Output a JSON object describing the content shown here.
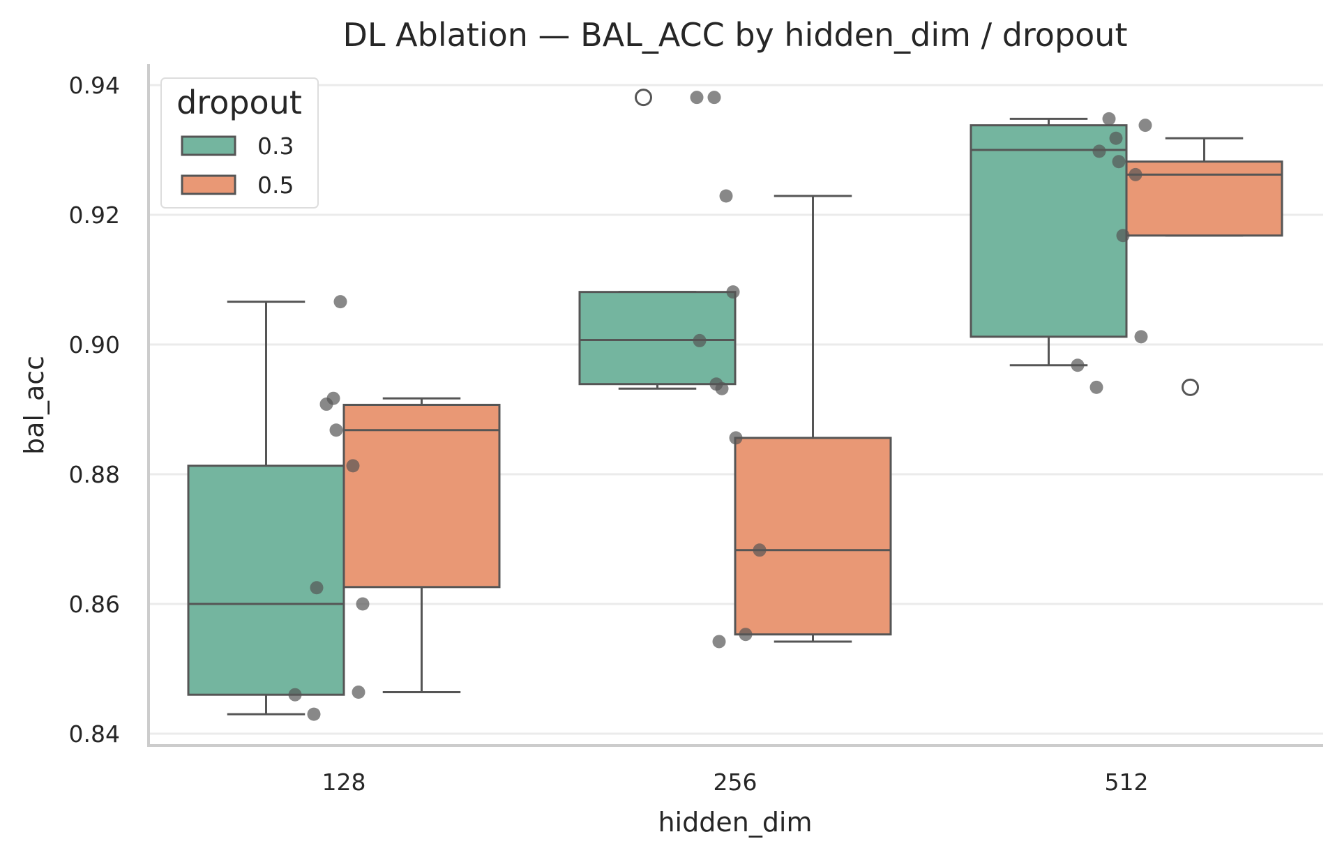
{
  "chart_data": {
    "type": "box",
    "title": "DL Ablation — BAL_ACC by hidden_dim / dropout",
    "xlabel": "hidden_dim",
    "ylabel": "bal_acc",
    "categories": [
      "128",
      "256",
      "512"
    ],
    "ylim": [
      0.838,
      0.944
    ],
    "yticks": [
      0.84,
      0.86,
      0.88,
      0.9,
      0.92,
      0.94
    ],
    "ytick_labels": [
      "0.84",
      "0.86",
      "0.88",
      "0.90",
      "0.92",
      "0.94"
    ],
    "grid": "horizontal",
    "legend": {
      "title": "dropout",
      "placement": "top-left",
      "entries": [
        "0.3",
        "0.5"
      ]
    },
    "colors": {
      "0.3": "#74b59f",
      "0.5": "#e99875",
      "box_edge": "#555555",
      "point": "#555555",
      "grid": "#ebebeb",
      "spine": "#cccccc"
    },
    "series": [
      {
        "name": "0.3",
        "boxes": [
          {
            "category": "128",
            "whisker_low": 0.843,
            "q1": 0.846,
            "median": 0.86,
            "q3": 0.8813,
            "whisker_high": 0.9066,
            "outliers": []
          },
          {
            "category": "256",
            "whisker_low": 0.8932,
            "q1": 0.8939,
            "median": 0.9007,
            "q3": 0.9081,
            "whisker_high": 0.9081,
            "outliers": [
              0.9381
            ]
          },
          {
            "category": "512",
            "whisker_low": 0.8968,
            "q1": 0.9012,
            "median": 0.93,
            "q3": 0.9338,
            "whisker_high": 0.9348,
            "outliers": []
          }
        ],
        "points": [
          {
            "category": "128",
            "values": [
              0.846,
              0.843,
              0.8625,
              0.9066,
              0.8908
            ]
          },
          {
            "category": "256",
            "values": [
              0.9381,
              0.9006,
              0.8939,
              0.9229,
              0.8932
            ]
          },
          {
            "category": "512",
            "values": [
              0.8968,
              0.8934,
              0.9298,
              0.9168,
              0.9348
            ]
          }
        ]
      },
      {
        "name": "0.5",
        "boxes": [
          {
            "category": "128",
            "whisker_low": 0.8464,
            "q1": 0.8626,
            "median": 0.8868,
            "q3": 0.8907,
            "whisker_high": 0.8917,
            "outliers": []
          },
          {
            "category": "256",
            "whisker_low": 0.8542,
            "q1": 0.8553,
            "median": 0.8683,
            "q3": 0.8856,
            "whisker_high": 0.9229,
            "outliers": []
          },
          {
            "category": "512",
            "whisker_low": 0.9168,
            "q1": 0.9168,
            "median": 0.9262,
            "q3": 0.9282,
            "whisker_high": 0.9318,
            "outliers": [
              0.8934
            ]
          }
        ],
        "points": [
          {
            "category": "128",
            "values": [
              0.8917,
              0.8868,
              0.8813,
              0.86,
              0.8464
            ]
          },
          {
            "category": "256",
            "values": [
              0.9381,
              0.9081,
              0.8856,
              0.8683,
              0.8553,
              0.8542
            ]
          },
          {
            "category": "512",
            "values": [
              0.9318,
              0.9282,
              0.9262,
              0.9338,
              0.9012
            ]
          }
        ]
      }
    ]
  }
}
